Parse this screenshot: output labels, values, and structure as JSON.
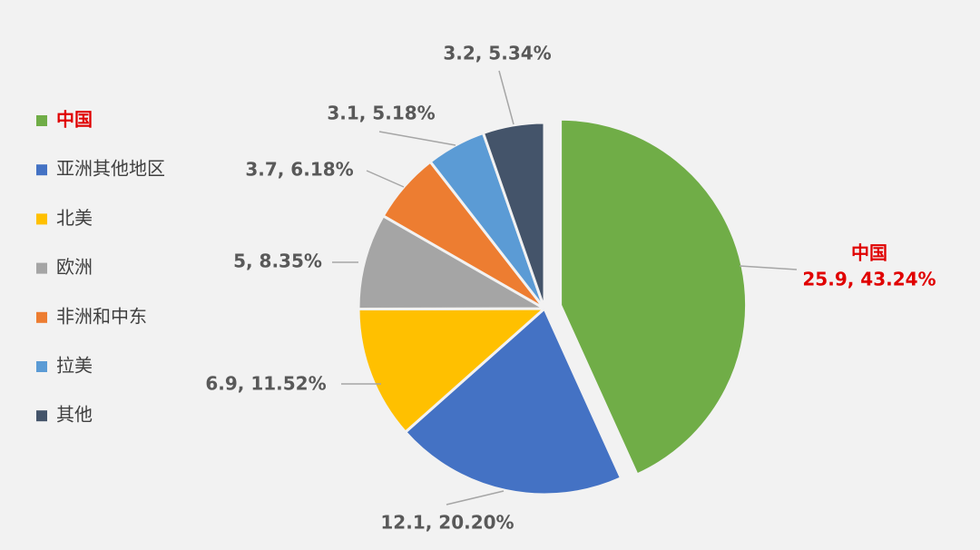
{
  "chart_data": {
    "type": "pie",
    "categories": [
      "中国",
      "亚洲其他地区",
      "北美",
      "欧洲",
      "非洲和中东",
      "拉美",
      "其他"
    ],
    "series": [
      {
        "colors": [
          "#70ad47",
          "#4472c4",
          "#ffc000",
          "#a5a5a5",
          "#ed7d31",
          "#5b9bd5",
          "#44546a"
        ],
        "values": [
          25.9,
          12.1,
          6.9,
          5,
          3.7,
          3.1,
          3.2
        ],
        "value_labels": [
          "25.9, 43.24%",
          "12.1, 20.20%",
          "6.9, 11.52%",
          "5, 8.35%",
          "3.7, 6.18%",
          "3.1, 5.18%",
          "3.2, 5.34%"
        ]
      }
    ],
    "legend": "left"
  }
}
